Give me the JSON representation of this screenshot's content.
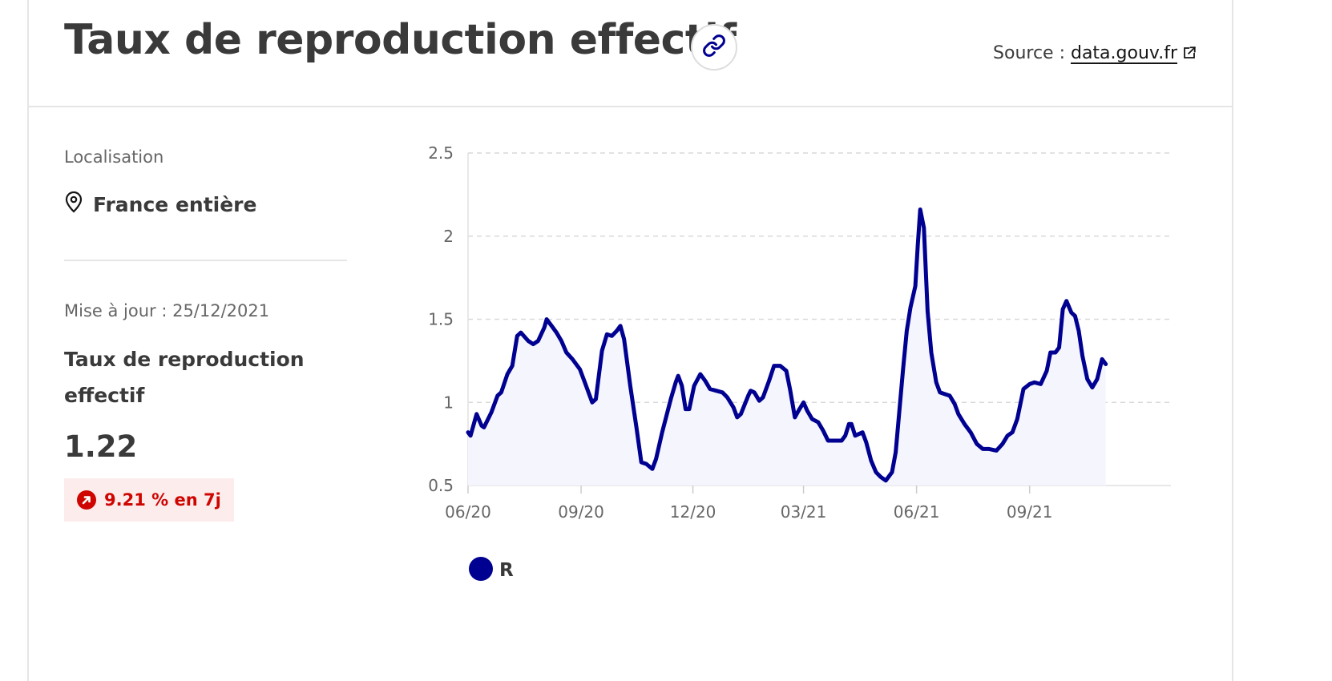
{
  "header": {
    "title": "Taux de reproduction effectif",
    "source_prefix": "Source : ",
    "source_link": "data.gouv.fr"
  },
  "sidebar": {
    "location_label": "Localisation",
    "location_value": "France entière",
    "update_label": "Mise à jour : 25/12/2021",
    "metric_title": "Taux de reproduction effectif",
    "metric_value": "1.22",
    "trend_text": "9.21 % en 7j"
  },
  "colors": {
    "line": "#000091",
    "area": "#f5f5fe",
    "trend": "#ce0500",
    "trend_bg": "#fdecec"
  },
  "icons": {
    "link": "link-icon",
    "external": "external-link-icon",
    "location": "map-pin-icon",
    "trend": "arrow-up-right-icon"
  },
  "chart_data": {
    "type": "area",
    "title": "",
    "xlabel": "",
    "ylabel": "",
    "y_ticks": [
      0.5,
      1,
      1.5,
      2,
      2.5
    ],
    "y_tick_labels": [
      "0.5",
      "1",
      "1.5",
      "2",
      "2.5"
    ],
    "ylim": [
      0.5,
      2.5
    ],
    "x_ticks": [
      "2020-06-01",
      "2020-09-01",
      "2020-12-01",
      "2021-03-01",
      "2021-06-01",
      "2021-09-01"
    ],
    "x_tick_labels": [
      "06/20",
      "09/20",
      "12/20",
      "03/21",
      "06/21",
      "09/21"
    ],
    "xlim": [
      "2020-06-01",
      "2021-12-25"
    ],
    "grid": true,
    "legend_position": "bottom-left",
    "series": [
      {
        "name": "R",
        "points": [
          [
            "2020-06-01",
            0.82
          ],
          [
            "2020-06-03",
            0.8
          ],
          [
            "2020-06-08",
            0.93
          ],
          [
            "2020-06-12",
            0.86
          ],
          [
            "2020-06-14",
            0.85
          ],
          [
            "2020-06-20",
            0.94
          ],
          [
            "2020-06-25",
            1.04
          ],
          [
            "2020-06-28",
            1.06
          ],
          [
            "2020-07-03",
            1.17
          ],
          [
            "2020-07-07",
            1.22
          ],
          [
            "2020-07-11",
            1.4
          ],
          [
            "2020-07-14",
            1.42
          ],
          [
            "2020-07-20",
            1.37
          ],
          [
            "2020-07-24",
            1.35
          ],
          [
            "2020-07-28",
            1.37
          ],
          [
            "2020-08-02",
            1.45
          ],
          [
            "2020-08-04",
            1.5
          ],
          [
            "2020-08-08",
            1.46
          ],
          [
            "2020-08-12",
            1.42
          ],
          [
            "2020-08-16",
            1.37
          ],
          [
            "2020-08-20",
            1.3
          ],
          [
            "2020-08-25",
            1.26
          ],
          [
            "2020-08-31",
            1.2
          ],
          [
            "2020-09-04",
            1.12
          ],
          [
            "2020-09-10",
            1.0
          ],
          [
            "2020-09-13",
            1.02
          ],
          [
            "2020-09-18",
            1.31
          ],
          [
            "2020-09-22",
            1.41
          ],
          [
            "2020-09-26",
            1.4
          ],
          [
            "2020-09-30",
            1.43
          ],
          [
            "2020-10-03",
            1.46
          ],
          [
            "2020-10-06",
            1.38
          ],
          [
            "2020-10-11",
            1.1
          ],
          [
            "2020-10-16",
            0.85
          ],
          [
            "2020-10-20",
            0.64
          ],
          [
            "2020-10-24",
            0.63
          ],
          [
            "2020-10-29",
            0.6
          ],
          [
            "2020-11-01",
            0.66
          ],
          [
            "2020-11-06",
            0.82
          ],
          [
            "2020-11-13",
            1.02
          ],
          [
            "2020-11-17",
            1.12
          ],
          [
            "2020-11-19",
            1.16
          ],
          [
            "2020-11-22",
            1.1
          ],
          [
            "2020-11-25",
            0.96
          ],
          [
            "2020-11-28",
            0.96
          ],
          [
            "2020-12-02",
            1.1
          ],
          [
            "2020-12-07",
            1.17
          ],
          [
            "2020-12-11",
            1.13
          ],
          [
            "2020-12-15",
            1.08
          ],
          [
            "2020-12-20",
            1.07
          ],
          [
            "2020-12-25",
            1.06
          ],
          [
            "2020-12-29",
            1.03
          ],
          [
            "2021-01-03",
            0.97
          ],
          [
            "2021-01-06",
            0.91
          ],
          [
            "2021-01-09",
            0.93
          ],
          [
            "2021-01-15",
            1.04
          ],
          [
            "2021-01-17",
            1.07
          ],
          [
            "2021-01-20",
            1.06
          ],
          [
            "2021-01-24",
            1.01
          ],
          [
            "2021-01-27",
            1.03
          ],
          [
            "2021-02-01",
            1.13
          ],
          [
            "2021-02-05",
            1.22
          ],
          [
            "2021-02-10",
            1.22
          ],
          [
            "2021-02-15",
            1.19
          ],
          [
            "2021-02-18",
            1.08
          ],
          [
            "2021-02-22",
            0.91
          ],
          [
            "2021-02-25",
            0.95
          ],
          [
            "2021-03-01",
            1.0
          ],
          [
            "2021-03-04",
            0.95
          ],
          [
            "2021-03-08",
            0.9
          ],
          [
            "2021-03-13",
            0.88
          ],
          [
            "2021-03-17",
            0.83
          ],
          [
            "2021-03-21",
            0.77
          ],
          [
            "2021-03-27",
            0.77
          ],
          [
            "2021-04-01",
            0.77
          ],
          [
            "2021-04-04",
            0.8
          ],
          [
            "2021-04-07",
            0.87
          ],
          [
            "2021-04-09",
            0.87
          ],
          [
            "2021-04-12",
            0.8
          ],
          [
            "2021-04-15",
            0.81
          ],
          [
            "2021-04-18",
            0.82
          ],
          [
            "2021-04-21",
            0.76
          ],
          [
            "2021-04-25",
            0.65
          ],
          [
            "2021-04-29",
            0.58
          ],
          [
            "2021-05-03",
            0.55
          ],
          [
            "2021-05-07",
            0.53
          ],
          [
            "2021-05-12",
            0.58
          ],
          [
            "2021-05-15",
            0.7
          ],
          [
            "2021-05-18",
            0.95
          ],
          [
            "2021-05-21",
            1.2
          ],
          [
            "2021-05-24",
            1.43
          ],
          [
            "2021-05-27",
            1.57
          ],
          [
            "2021-05-31",
            1.7
          ],
          [
            "2021-06-02",
            1.95
          ],
          [
            "2021-06-04",
            2.16
          ],
          [
            "2021-06-07",
            2.05
          ],
          [
            "2021-06-10",
            1.55
          ],
          [
            "2021-06-13",
            1.3
          ],
          [
            "2021-06-17",
            1.12
          ],
          [
            "2021-06-20",
            1.06
          ],
          [
            "2021-06-24",
            1.05
          ],
          [
            "2021-06-28",
            1.04
          ],
          [
            "2021-07-02",
            0.99
          ],
          [
            "2021-07-05",
            0.93
          ],
          [
            "2021-07-10",
            0.87
          ],
          [
            "2021-07-15",
            0.82
          ],
          [
            "2021-07-20",
            0.75
          ],
          [
            "2021-07-25",
            0.72
          ],
          [
            "2021-07-30",
            0.72
          ],
          [
            "2021-08-05",
            0.71
          ],
          [
            "2021-08-10",
            0.75
          ],
          [
            "2021-08-14",
            0.8
          ],
          [
            "2021-08-18",
            0.82
          ],
          [
            "2021-08-22",
            0.9
          ],
          [
            "2021-08-27",
            1.08
          ],
          [
            "2021-09-01",
            1.11
          ],
          [
            "2021-09-05",
            1.12
          ],
          [
            "2021-09-10",
            1.11
          ],
          [
            "2021-09-15",
            1.19
          ],
          [
            "2021-09-18",
            1.3
          ],
          [
            "2021-09-22",
            1.3
          ],
          [
            "2021-09-25",
            1.33
          ],
          [
            "2021-09-28",
            1.56
          ],
          [
            "2021-10-01",
            1.61
          ],
          [
            "2021-10-05",
            1.54
          ],
          [
            "2021-10-08",
            1.52
          ],
          [
            "2021-10-11",
            1.43
          ],
          [
            "2021-10-14",
            1.28
          ],
          [
            "2021-10-18",
            1.14
          ],
          [
            "2021-10-22",
            1.09
          ],
          [
            "2021-10-26",
            1.14
          ],
          [
            "2021-10-30",
            1.26
          ],
          [
            "2021-11-02",
            1.23
          ]
        ]
      }
    ]
  }
}
